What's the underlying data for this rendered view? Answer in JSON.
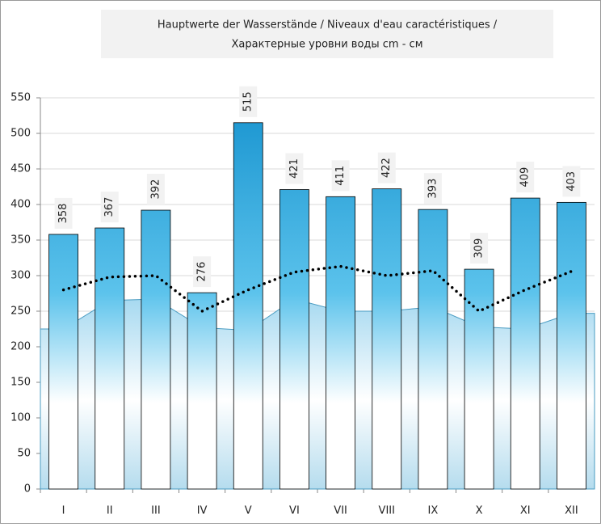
{
  "chart_data": {
    "type": "bar",
    "title": [
      "Hauptwerte der Wasserstände / Niveaux d'eau caractéristiques /",
      "Характерные уровни воды cm - см"
    ],
    "categories": [
      "I",
      "II",
      "III",
      "IV",
      "V",
      "VI",
      "VII",
      "VIII",
      "IX",
      "X",
      "XI",
      "XII"
    ],
    "series": [
      {
        "type": "area",
        "color": "#9fd6ef",
        "values": [
          225,
          265,
          267,
          227,
          223,
          267,
          250,
          250,
          256,
          228,
          225,
          247
        ]
      },
      {
        "type": "bar",
        "color": "#1793cf",
        "values": [
          358,
          367,
          392,
          276,
          515,
          421,
          411,
          422,
          393,
          309,
          409,
          403
        ]
      },
      {
        "type": "line",
        "color": "#000000",
        "values": [
          280,
          298,
          300,
          250,
          280,
          305,
          313,
          300,
          307,
          250,
          280,
          306
        ]
      }
    ],
    "ylim": [
      0,
      550
    ],
    "yticks": [
      0,
      50,
      100,
      150,
      200,
      250,
      300,
      350,
      400,
      450,
      500,
      550
    ],
    "grid": true
  }
}
